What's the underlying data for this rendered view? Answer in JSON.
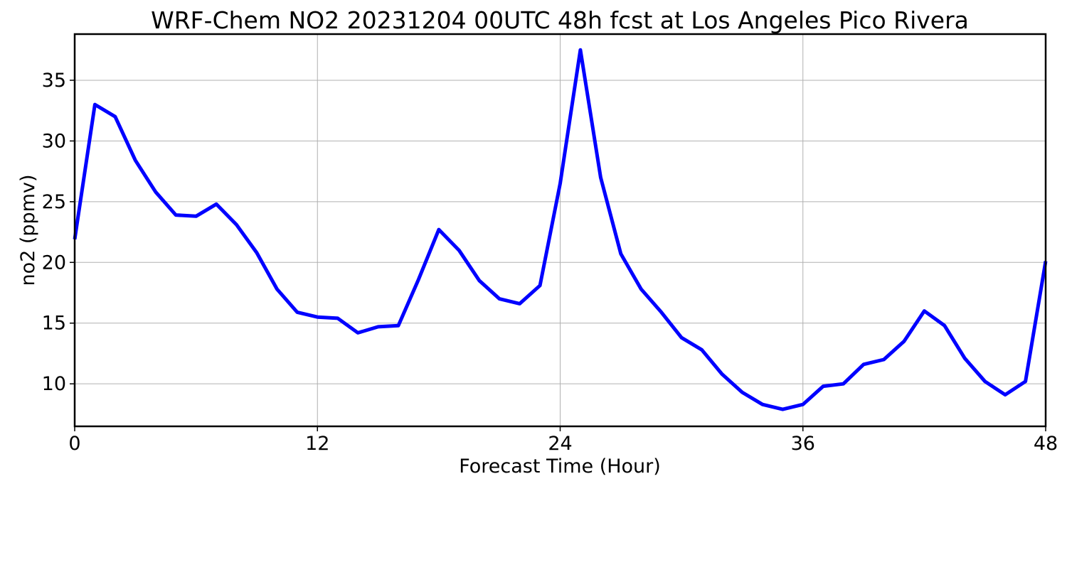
{
  "chart_data": {
    "type": "line",
    "title": "WRF-Chem NO2  20231204 00UTC 48h fcst at Los Angeles Pico Rivera",
    "xlabel": "Forecast Time (Hour)",
    "ylabel": "no2  (ppmv)",
    "xlim": [
      0,
      48
    ],
    "ylim": [
      6.5,
      38.8
    ],
    "xticks": [
      0,
      12,
      24,
      36,
      48
    ],
    "yticks": [
      10,
      15,
      20,
      25,
      30,
      35
    ],
    "grid": true,
    "legend": "none",
    "series": [
      {
        "color": "#0000ff",
        "x": [
          0,
          1,
          2,
          3,
          4,
          5,
          6,
          7,
          8,
          9,
          10,
          11,
          12,
          13,
          14,
          15,
          16,
          17,
          18,
          19,
          20,
          21,
          22,
          23,
          24,
          25,
          26,
          27,
          28,
          29,
          30,
          31,
          32,
          33,
          34,
          35,
          36,
          37,
          38,
          39,
          40,
          41,
          42,
          43,
          44,
          45,
          46,
          47,
          48
        ],
        "values": [
          21.9,
          33.0,
          32.0,
          28.4,
          25.8,
          23.9,
          23.8,
          24.8,
          23.1,
          20.8,
          17.8,
          15.9,
          15.5,
          15.4,
          14.2,
          14.7,
          14.8,
          18.6,
          22.7,
          21.0,
          18.5,
          17.0,
          16.6,
          18.1,
          26.5,
          37.5,
          27.0,
          20.7,
          17.8,
          15.9,
          13.8,
          12.8,
          10.8,
          9.3,
          8.3,
          7.9,
          8.3,
          9.8,
          10.0,
          11.6,
          12.0,
          13.5,
          16.0,
          14.8,
          12.1,
          10.2,
          9.1,
          10.2,
          20.1
        ]
      }
    ]
  }
}
